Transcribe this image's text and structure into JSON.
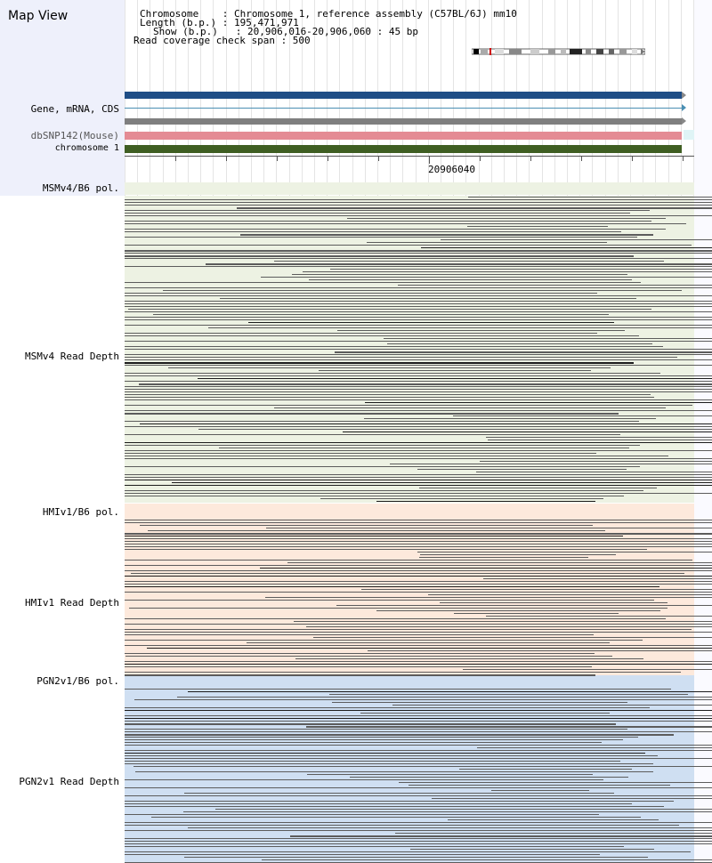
{
  "header": {
    "title": "Map View",
    "info_lines": [
      "Chromosome    : Chromosome 1, reference assembly (C57BL/6J) mm10",
      "Length (b.p.) : 195,471,971",
      "Show (b.p.)   : 20,906,016-20,906,060 : 45 bp",
      "Read coverage check span : 500"
    ]
  },
  "tracks": {
    "gene_label": "Gene, mRNA, CDS",
    "snp_label": "dbSNP142(Mouse)",
    "chrom_label": "chromosome 1",
    "ruler_label": "20906040"
  },
  "panels": [
    {
      "pol_label": "MSMv4/B6 pol.",
      "depth_label": "MSMv4 Read Depth",
      "tint": "#edf2e3"
    },
    {
      "pol_label": "HMIv1/B6 pol.",
      "depth_label": "HMIv1 Read Depth",
      "tint": "#fde9dc"
    },
    {
      "pol_label": "PGN2v1/B6 pol.",
      "depth_label": "PGN2v1 Read Depth",
      "tint": "#cfdff2"
    }
  ],
  "colors": {
    "gene_bar": "#1f4e86",
    "gene_line": "#4a8fb3",
    "grey_bar": "#7f7f7f",
    "snp_bar": "#e48b94",
    "chrom_bar": "#3f5e22",
    "read": "#5c5c5c",
    "read_dark": "#1c1c1c"
  }
}
